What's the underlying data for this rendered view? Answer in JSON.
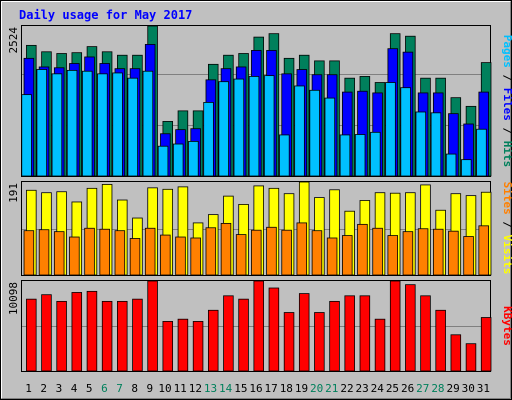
{
  "chart_data": {
    "type": "bar",
    "title": "Daily usage for May 2017",
    "categories": [
      "1",
      "2",
      "3",
      "4",
      "5",
      "6",
      "7",
      "8",
      "9",
      "10",
      "11",
      "12",
      "13",
      "14",
      "15",
      "16",
      "17",
      "18",
      "19",
      "20",
      "21",
      "22",
      "23",
      "24",
      "25",
      "26",
      "27",
      "28",
      "29",
      "30",
      "31"
    ],
    "weekend_days": [
      "6",
      "7",
      "13",
      "14",
      "20",
      "21",
      "27",
      "28"
    ],
    "panels": [
      {
        "id": "hits-files-pages",
        "ylim": [
          0,
          2524
        ],
        "max_label": "2524",
        "ylabel_parts": [
          {
            "text": "Pages",
            "color": "#00c0ff"
          },
          {
            "text": " / ",
            "color": "#000000"
          },
          {
            "text": "Files",
            "color": "#0000ff"
          },
          {
            "text": " / ",
            "color": "#000000"
          },
          {
            "text": "Hits",
            "color": "#00805c"
          }
        ],
        "series": [
          {
            "name": "Hits",
            "color": "#00805c",
            "values": [
              2198,
              2090,
              2061,
              2075,
              2177,
              2090,
              2032,
              2032,
              2524,
              918,
              1096,
              1096,
              1879,
              2032,
              2061,
              2337,
              2395,
              1980,
              2032,
              1937,
              1937,
              1646,
              1675,
              1573,
              2395,
              2352,
              1646,
              1646,
              1318,
              1172,
              1908
            ]
          },
          {
            "name": "Files",
            "color": "#0000ff",
            "values": [
              1980,
              1835,
              1821,
              1893,
              2003,
              1893,
              1806,
              1806,
              2214,
              711,
              780,
              796,
              1618,
              1806,
              1835,
              2113,
              2113,
              1719,
              1791,
              1704,
              1704,
              1412,
              1426,
              1398,
              2142,
              2084,
              1398,
              1398,
              1049,
              875,
              1412
            ]
          },
          {
            "name": "Pages",
            "color": "#00c0ff",
            "values": [
              1369,
              1792,
              1719,
              1777,
              1763,
              1719,
              1734,
              1646,
              1763,
              501,
              538,
              582,
              1238,
              1587,
              1631,
              1675,
              1689,
              691,
              1515,
              1442,
              1311,
              691,
              698,
              735,
              1573,
              1486,
              1077,
              1063,
              369,
              275,
              787
            ]
          }
        ]
      },
      {
        "id": "visits-sites",
        "ylim": [
          0,
          191
        ],
        "max_label": "191",
        "ylabel_parts": [
          {
            "text": "Sites",
            "color": "#ff8000"
          },
          {
            "text": " / ",
            "color": "#000000"
          },
          {
            "text": "Visits",
            "color": "#ffff00"
          }
        ],
        "series": [
          {
            "name": "Visits",
            "color": "#ffff00",
            "values": [
              174,
              169,
              171,
              150,
              178,
              186,
              154,
              117,
              179,
              176,
              181,
              107,
              124,
              162,
              145,
              183,
              178,
              167,
              191,
              159,
              175,
              131,
              153,
              169,
              168,
              169,
              185,
              133,
              167,
              163,
              170
            ]
          },
          {
            "name": "Sites",
            "color": "#ff8000",
            "values": [
              91,
              93,
              89,
              78,
              96,
              94,
              91,
              75,
              96,
              82,
              78,
              76,
              97,
              106,
              83,
              92,
              98,
              92,
              107,
              91,
              76,
              81,
              104,
              96,
              81,
              89,
              95,
              94,
              90,
              79,
              101
            ]
          }
        ]
      },
      {
        "id": "kbytes",
        "ylim": [
          0,
          10098
        ],
        "max_label": "10098",
        "ylabel_parts": [
          {
            "text": "KBytes",
            "color": "#ff0000"
          }
        ],
        "series": [
          {
            "name": "KBytes",
            "color": "#ff0000",
            "values": [
              8061,
              8561,
              7811,
              8811,
              8936,
              7811,
              7811,
              8061,
              10098,
              5562,
              5812,
              5562,
              6812,
              8436,
              8061,
              10098,
              9311,
              6561,
              8686,
              6561,
              7811,
              8436,
              8436,
              5812,
              10098,
              9686,
              8436,
              6812,
              4063,
              3063,
              6000
            ]
          }
        ]
      }
    ]
  }
}
